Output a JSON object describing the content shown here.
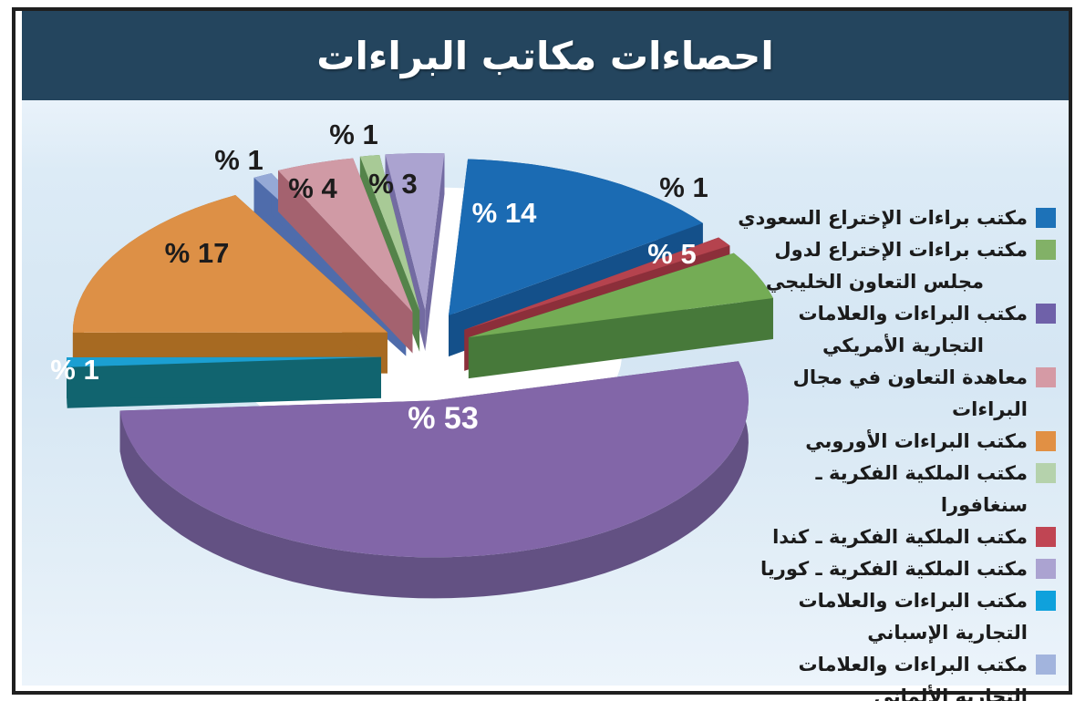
{
  "title": "احصاءات مكاتب البراءات",
  "colors": {
    "header_bg": "#24455e",
    "body_bg": "#d8e8f4",
    "frame_border": "#1f1f1f",
    "legend_text": "#1b1b1b"
  },
  "chart_data": {
    "type": "pie",
    "title": "احصاءات مكاتب البراءات",
    "unit": "%",
    "percent_prefix": "% ",
    "legend_position": "right",
    "slices": [
      {
        "label_lines": [
          "مكتب براءات الإختراع السعودي"
        ],
        "value": 14,
        "color_top": "#1b6bb3",
        "color_side": "#14508a",
        "legend_color": "#1d72b8",
        "label_style": "light"
      },
      {
        "label_lines": [
          "مكتب براءات الإختراع لدول",
          "مجلس التعاون الخليجي"
        ],
        "value": 5,
        "color_top": "#74ac55",
        "color_side": "#47793a",
        "legend_color": "#82b167",
        "label_style": "light"
      },
      {
        "label_lines": [
          "مكتب البراءات والعلامات",
          "التجارية الأمريكي"
        ],
        "value": 53,
        "color_top": "#8266a8",
        "color_side": "#635183",
        "legend_color": "#6f61a9",
        "label_style": "light"
      },
      {
        "label_lines": [
          "معاهدة التعاون في مجال البراءات"
        ],
        "value": 4,
        "color_top": "#d09aa5",
        "color_side": "#a4626f",
        "legend_color": "#d59aa5",
        "label_style": "dark"
      },
      {
        "label_lines": [
          "مكتب البراءات الأوروبي"
        ],
        "value": 17,
        "color_top": "#dd9046",
        "color_side": "#a76a22",
        "legend_color": "#e19044",
        "label_style": "dark"
      },
      {
        "label_lines": [
          "مكتب الملكية الفكرية ـ سنغافورا"
        ],
        "value": 1,
        "color_top": "#a8ca96",
        "color_side": "#54834a",
        "legend_color": "#b5d2ac",
        "label_style": "dark"
      },
      {
        "label_lines": [
          "مكتب الملكية الفكرية ـ كندا"
        ],
        "value": 1,
        "color_top": "#b5434e",
        "color_side": "#8c2f3a",
        "legend_color": "#c04553",
        "label_style": "dark"
      },
      {
        "label_lines": [
          "مكتب الملكية الفكرية ـ كوريا"
        ],
        "value": 3,
        "color_top": "#aba3d0",
        "color_side": "#736ba2",
        "legend_color": "#aba3d1",
        "label_style": "dark"
      },
      {
        "label_lines": [
          "مكتب البراءات والعلامات التجارية الإسباني"
        ],
        "value": 1,
        "color_top": "#1b9fd2",
        "color_side": "#11646f",
        "legend_color": "#0fa1dc",
        "label_style": "light"
      },
      {
        "label_lines": [
          "مكتب البراءات والعلامات التجارية الألماني"
        ],
        "value": 1,
        "color_top": "#95a9d6",
        "color_side": "#4f6cab",
        "legend_color": "#a2b4dd",
        "label_style": "dark"
      }
    ],
    "pie_order": [
      0,
      6,
      1,
      2,
      8,
      4,
      9,
      3,
      5,
      7
    ],
    "start_deg": -86.5
  }
}
